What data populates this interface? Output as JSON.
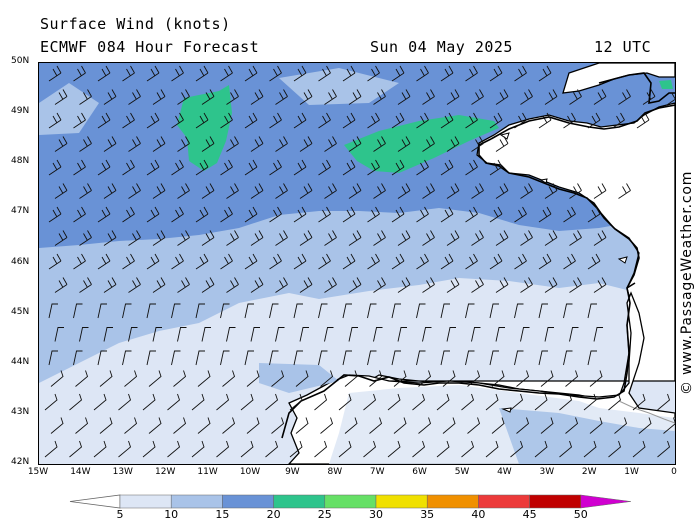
{
  "title_line1": "Surface Wind (knots)",
  "model_line": "ECMWF 084 Hour Forecast",
  "date_line": "Sun 04 May 2025",
  "time_line": "12 UTC",
  "credit": "© www.PassageWeather.com",
  "lat_labels": [
    "50N",
    "49N",
    "48N",
    "47N",
    "46N",
    "45N",
    "44N",
    "43N",
    "42N"
  ],
  "lon_labels": [
    "15W",
    "14W",
    "13W",
    "12W",
    "11W",
    "10W",
    "9W",
    "8W",
    "7W",
    "6W",
    "5W",
    "4W",
    "3W",
    "2W",
    "1W",
    "0"
  ],
  "legend": {
    "ticks": [
      "5",
      "10",
      "15",
      "20",
      "25",
      "30",
      "35",
      "40",
      "45",
      "50"
    ],
    "colors": [
      "#dde6f5",
      "#a9c3e8",
      "#6992d6",
      "#2ec48c",
      "#66e066",
      "#f0e000",
      "#f09000",
      "#ec3a3a",
      "#c00000",
      "#d000d0"
    ]
  },
  "map": {
    "extent": {
      "lon": [
        -15,
        0
      ],
      "lat": [
        42,
        50
      ]
    },
    "wind_bands": [
      {
        "label": "5-10",
        "color": "#dde6f5"
      },
      {
        "label": "10-15",
        "color": "#a9c3e8"
      },
      {
        "label": "15-20",
        "color": "#6992d6"
      },
      {
        "label": "20-25",
        "color": "#2ec48c"
      }
    ],
    "land_color": "#ffffff",
    "coast_color": "#000000"
  }
}
